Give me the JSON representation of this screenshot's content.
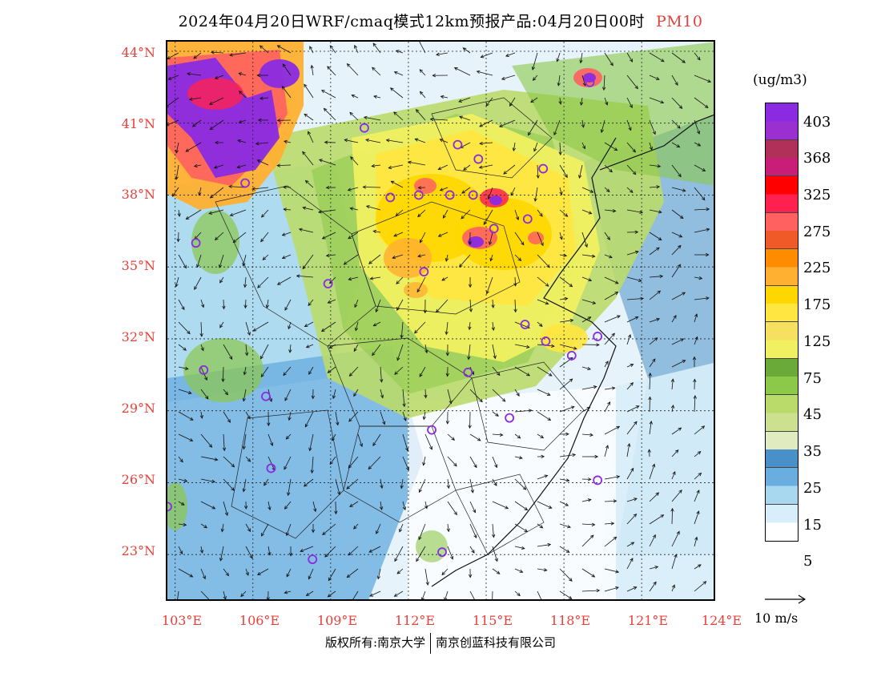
{
  "header": {
    "title": "2024年04月20日WRF/cmaq模式12km预报产品:04月20日00时",
    "pollutant": "PM10"
  },
  "axes": {
    "lat_labels": [
      "44°N",
      "41°N",
      "38°N",
      "35°N",
      "32°N",
      "29°N",
      "26°N",
      "23°N"
    ],
    "lon_labels": [
      "103°E",
      "106°E",
      "109°E",
      "112°E",
      "115°E",
      "118°E",
      "121°E",
      "124°E"
    ]
  },
  "legend": {
    "unit": "(ug/m3)",
    "labels": [
      "403",
      "368",
      "325",
      "275",
      "225",
      "175",
      "125",
      "75",
      "45",
      "35",
      "25",
      "15",
      "5"
    ],
    "colors": [
      "#8a2be2",
      "#9b30d0",
      "#b0305a",
      "#c81e78",
      "#ff0000",
      "#ff2050",
      "#ff6060",
      "#f05a28",
      "#ff8c00",
      "#ffb030",
      "#ffd700",
      "#ffe640",
      "#f5e060",
      "#f0f060",
      "#6aaa38",
      "#8cc84a",
      "#bada6a",
      "#cce090",
      "#e0ecc0",
      "#4a90c8",
      "#6aaee0",
      "#a8d8f0",
      "#d8eefa",
      "#ffffff"
    ]
  },
  "wind_ref": {
    "label": "10 m/s"
  },
  "footer": {
    "copyright_left": "版权所有:南京大学",
    "copyright_right": "南京创蓝科技有限公司"
  },
  "stations": [
    [
      119.0,
      42.7
    ],
    [
      110.3,
      40.8
    ],
    [
      113.9,
      40.1
    ],
    [
      114.7,
      39.5
    ],
    [
      105.7,
      38.5
    ],
    [
      112.4,
      38.0
    ],
    [
      111.3,
      37.9
    ],
    [
      117.2,
      39.1
    ],
    [
      113.6,
      38.0
    ],
    [
      114.5,
      38.0
    ],
    [
      116.6,
      37.0
    ],
    [
      115.3,
      36.6
    ],
    [
      103.8,
      36.0
    ],
    [
      112.6,
      34.8
    ],
    [
      108.9,
      34.3
    ],
    [
      116.5,
      32.6
    ],
    [
      117.3,
      31.9
    ],
    [
      119.3,
      32.1
    ],
    [
      106.5,
      29.6
    ],
    [
      118.3,
      31.3
    ],
    [
      114.3,
      30.6
    ],
    [
      104.1,
      30.7
    ],
    [
      115.9,
      28.7
    ],
    [
      112.9,
      28.2
    ],
    [
      106.7,
      26.6
    ],
    [
      119.3,
      26.1
    ],
    [
      102.7,
      25.0
    ],
    [
      113.3,
      23.1
    ],
    [
      108.3,
      22.8
    ]
  ]
}
